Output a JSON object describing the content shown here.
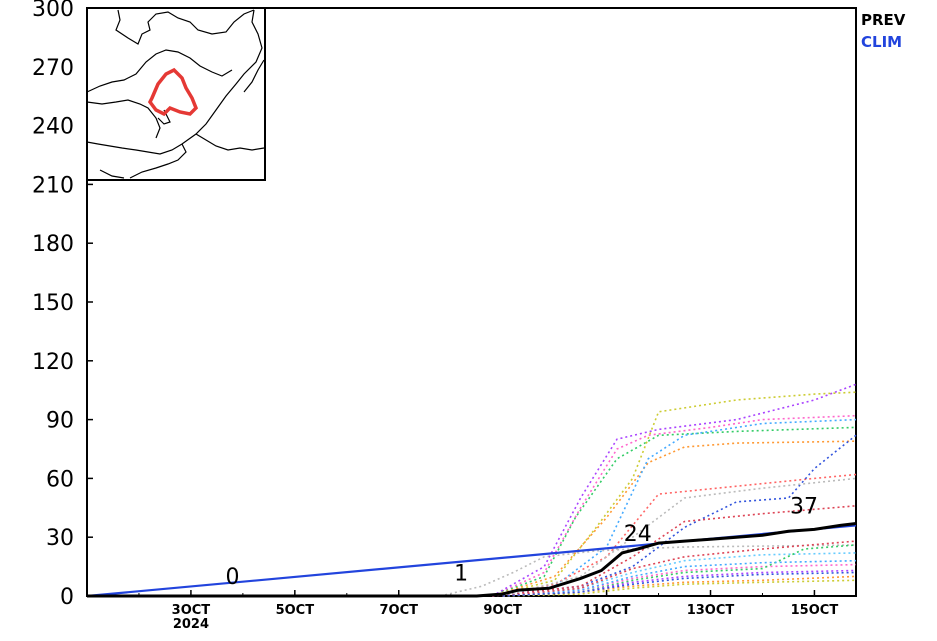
{
  "chart_data": {
    "type": "line",
    "title": "",
    "xlabel": "",
    "ylabel": "",
    "ylim": [
      0,
      300
    ],
    "yticks": [
      0,
      30,
      60,
      90,
      120,
      150,
      180,
      210,
      240,
      270,
      300
    ],
    "xlim_days": [
      1,
      15.8
    ],
    "x_tick_labels": [
      {
        "label": "3OCT",
        "sub": "2024",
        "day": 3
      },
      {
        "label": "5OCT",
        "day": 5
      },
      {
        "label": "7OCT",
        "day": 7
      },
      {
        "label": "9OCT",
        "day": 9
      },
      {
        "label": "11OCT",
        "day": 11
      },
      {
        "label": "13OCT",
        "day": 13
      },
      {
        "label": "15OCT",
        "day": 15
      }
    ],
    "legend": [
      {
        "name": "PREV",
        "color": "#000000"
      },
      {
        "name": "CLIM",
        "color": "#2244dd"
      }
    ],
    "series": [
      {
        "name": "CLIM",
        "color": "#2244dd",
        "x": [
          1,
          15.8
        ],
        "y": [
          0,
          36
        ]
      },
      {
        "name": "PREV",
        "color": "#000000",
        "x": [
          1,
          3,
          5,
          7,
          8,
          8.5,
          9,
          9.3,
          9.9,
          10.5,
          10.9,
          11.3,
          11.6,
          12,
          12.5,
          13,
          13.5,
          14,
          14.5,
          15,
          15.5,
          15.8
        ],
        "y": [
          0,
          0,
          0,
          0,
          0,
          0,
          1,
          3,
          4,
          9,
          13,
          22,
          24,
          27,
          28,
          29,
          30,
          31,
          33,
          34,
          36,
          37
        ]
      }
    ],
    "data_labels": [
      {
        "text": "0",
        "x": 3.8,
        "y": 6
      },
      {
        "text": "1",
        "x": 8.2,
        "y": 8
      },
      {
        "text": "24",
        "x": 11.6,
        "y": 28
      },
      {
        "text": "37",
        "x": 14.8,
        "y": 42
      }
    ],
    "ensemble_members": [
      {
        "color": "#bbbbbb",
        "x": [
          7.8,
          8.6,
          9.2,
          9.8,
          10.8,
          11.5,
          12.5,
          15.8
        ],
        "y": [
          0,
          5,
          12,
          20,
          23,
          24,
          25,
          26
        ]
      },
      {
        "color": "#ff66cc",
        "x": [
          8.8,
          9.8,
          10.5,
          11.2,
          11.8,
          13,
          14,
          15.8
        ],
        "y": [
          0,
          12,
          45,
          75,
          82,
          86,
          90,
          92
        ]
      },
      {
        "color": "#aa44ff",
        "x": [
          8.8,
          9.8,
          10.5,
          11.2,
          12,
          13.5,
          15,
          15.8
        ],
        "y": [
          0,
          15,
          50,
          80,
          85,
          90,
          100,
          108
        ]
      },
      {
        "color": "#33cc66",
        "x": [
          8.8,
          9.8,
          10.4,
          11.2,
          12,
          13.5,
          15.8
        ],
        "y": [
          0,
          10,
          40,
          70,
          82,
          84,
          86
        ]
      },
      {
        "color": "#cccc33",
        "x": [
          8.8,
          10,
          10.8,
          11.5,
          12,
          13.5,
          15,
          15.8
        ],
        "y": [
          0,
          8,
          35,
          60,
          94,
          100,
          103,
          104
        ]
      },
      {
        "color": "#ff9933",
        "x": [
          8.8,
          10,
          11,
          11.8,
          12.5,
          13.5,
          15.8
        ],
        "y": [
          0,
          10,
          40,
          68,
          76,
          78,
          79
        ]
      },
      {
        "color": "#44aaff",
        "x": [
          8.8,
          10,
          11,
          11.8,
          12.5,
          14,
          15.8
        ],
        "y": [
          0,
          5,
          25,
          70,
          82,
          88,
          90
        ]
      },
      {
        "color": "#ff6666",
        "x": [
          8.8,
          10,
          11,
          12,
          13.5,
          15,
          15.8
        ],
        "y": [
          0,
          6,
          20,
          52,
          56,
          60,
          62
        ]
      },
      {
        "color": "#3355dd",
        "x": [
          8.8,
          10.5,
          11.5,
          12.5,
          13.5,
          14.5,
          15,
          15.8
        ],
        "y": [
          0,
          5,
          15,
          35,
          48,
          50,
          65,
          82
        ]
      },
      {
        "color": "#dd4455",
        "x": [
          8.8,
          10.5,
          11.5,
          12.5,
          14,
          15.8
        ],
        "y": [
          0,
          5,
          20,
          38,
          42,
          46
        ]
      },
      {
        "color": "#bbbbbb",
        "x": [
          9,
          10.5,
          11.5,
          12.5,
          14,
          15.8
        ],
        "y": [
          0,
          10,
          30,
          50,
          55,
          60
        ]
      },
      {
        "color": "#66ccff",
        "x": [
          9,
          10.5,
          11.5,
          12.5,
          14,
          15.8
        ],
        "y": [
          0,
          4,
          12,
          18,
          21,
          22
        ]
      },
      {
        "color": "#ff66cc",
        "x": [
          9,
          10.5,
          11.5,
          12.5,
          14,
          15.8
        ],
        "y": [
          0,
          3,
          9,
          13,
          15,
          16
        ]
      },
      {
        "color": "#33cc66",
        "x": [
          9,
          10.5,
          11.5,
          12.5,
          14,
          14.8,
          15.8
        ],
        "y": [
          0,
          2,
          8,
          12,
          14,
          24,
          26
        ]
      },
      {
        "color": "#ff9933",
        "x": [
          9,
          10.5,
          11.5,
          12.5,
          14,
          15.8
        ],
        "y": [
          0,
          2,
          5,
          7,
          8,
          10
        ]
      },
      {
        "color": "#aa44ff",
        "x": [
          9,
          10.5,
          11.5,
          12.5,
          14,
          15.8
        ],
        "y": [
          0,
          2,
          7,
          10,
          12,
          13
        ]
      },
      {
        "color": "#44aaff",
        "x": [
          9,
          10.5,
          11.5,
          12.5,
          14,
          15.8
        ],
        "y": [
          0,
          3,
          10,
          15,
          17,
          18
        ]
      },
      {
        "color": "#cccc33",
        "x": [
          9,
          10.5,
          11.5,
          12.5,
          14,
          15.8
        ],
        "y": [
          0,
          1,
          4,
          6,
          7,
          8
        ]
      },
      {
        "color": "#dd4455",
        "x": [
          9,
          10.5,
          11.5,
          12.5,
          14,
          15.8
        ],
        "y": [
          0,
          4,
          14,
          20,
          24,
          28
        ]
      },
      {
        "color": "#3355dd",
        "x": [
          9,
          10.5,
          11.5,
          12.5,
          14,
          15.8
        ],
        "y": [
          0,
          2,
          6,
          9,
          11,
          12
        ]
      }
    ]
  }
}
